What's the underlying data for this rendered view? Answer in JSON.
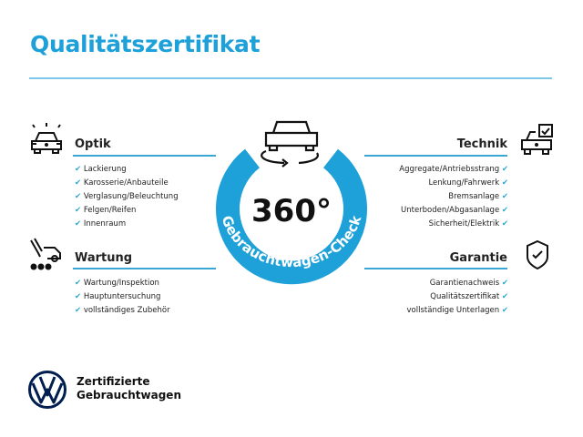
{
  "title": "Qualitätszertifikat",
  "colors": {
    "accent": "#1ea0d9",
    "brand": "#001e50"
  },
  "center": {
    "big": "360°",
    "ring_text": "Gebrauchtwagen-Check",
    "icon": "car-rotate-icon"
  },
  "sections": {
    "optik": {
      "title": "Optik",
      "icon": "car-lights-icon",
      "items": [
        "Lackierung",
        "Karosserie/Anbauteile",
        "Verglasung/Beleuchtung",
        "Felgen/Reifen",
        "Innenraum"
      ]
    },
    "wartung": {
      "title": "Wartung",
      "icon": "car-service-icon",
      "items": [
        "Wartung/Inspektion",
        "Hauptuntersuchung",
        "vollständiges Zubehör"
      ]
    },
    "technik": {
      "title": "Technik",
      "icon": "car-checkbox-icon",
      "items": [
        "Aggregate/Antriebsstrang",
        "Lenkung/Fahrwerk",
        "Bremsanlage",
        "Unterboden/Abgasanlage",
        "Sicherheit/Elektrik"
      ]
    },
    "garantie": {
      "title": "Garantie",
      "icon": "shield-check-icon",
      "items": [
        "Garantienachweis",
        "Qualitätszertifikat",
        "vollständige Unterlagen"
      ]
    }
  },
  "brand": {
    "line1": "Zertifizierte",
    "line2": "Gebrauchtwagen",
    "logo": "VW"
  }
}
